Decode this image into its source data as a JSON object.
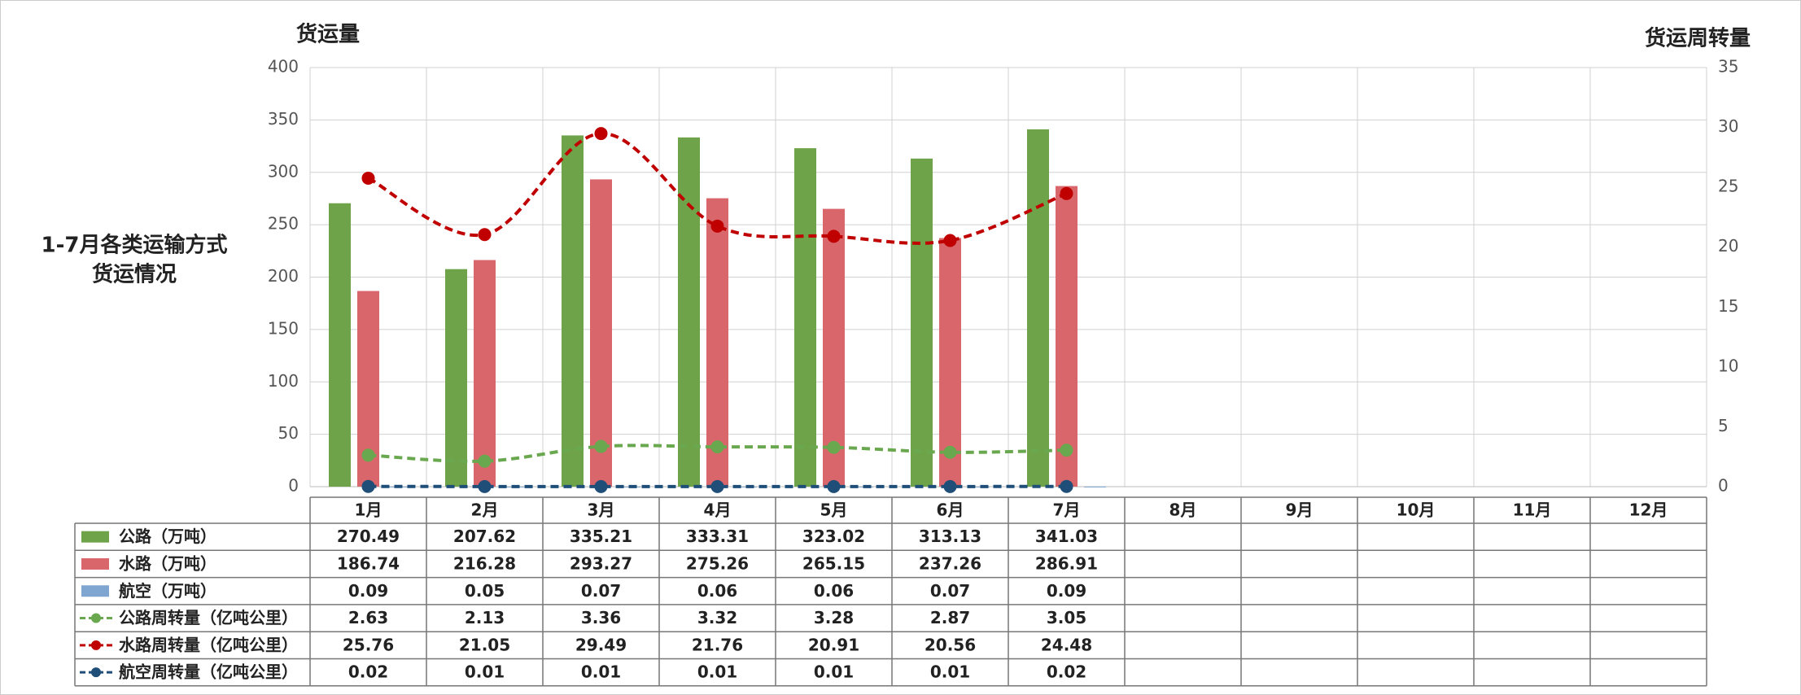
{
  "chart_data": {
    "type": "bar",
    "title": [
      "1-7月各类运输方式",
      "货运情况"
    ],
    "y_label": "货运量",
    "y2_label": "货运周转量",
    "categories": [
      "1月",
      "2月",
      "3月",
      "4月",
      "5月",
      "6月",
      "7月",
      "8月",
      "9月",
      "10月",
      "11月",
      "12月"
    ],
    "ylim": [
      0,
      400
    ],
    "yticks": [
      0,
      50,
      100,
      150,
      200,
      250,
      300,
      350,
      400
    ],
    "y2lim": [
      0,
      35
    ],
    "y2ticks": [
      0,
      5,
      10,
      15,
      20,
      25,
      30,
      35
    ],
    "grid": true,
    "series": [
      {
        "name": "公路（万吨）",
        "type": "bar",
        "color": "#6fa34a",
        "values": [
          270.49,
          207.62,
          335.21,
          333.31,
          323.02,
          313.13,
          341.03,
          null,
          null,
          null,
          null,
          null
        ]
      },
      {
        "name": "水路（万吨）",
        "type": "bar",
        "color": "#d9666a",
        "values": [
          186.74,
          216.28,
          293.27,
          275.26,
          265.15,
          237.26,
          286.91,
          null,
          null,
          null,
          null,
          null
        ]
      },
      {
        "name": "航空（万吨）",
        "type": "bar",
        "color": "#7ea6d0",
        "values": [
          0.09,
          0.05,
          0.07,
          0.06,
          0.06,
          0.07,
          0.09,
          null,
          null,
          null,
          null,
          null
        ]
      },
      {
        "name": "公路周转量（亿吨公里）",
        "type": "line",
        "axis": "y2",
        "color": "#6aa84f",
        "values": [
          2.63,
          2.13,
          3.36,
          3.32,
          3.28,
          2.87,
          3.05,
          null,
          null,
          null,
          null,
          null
        ]
      },
      {
        "name": "水路周转量（亿吨公里）",
        "type": "line",
        "axis": "y2",
        "color": "#c00000",
        "values": [
          25.76,
          21.05,
          29.49,
          21.76,
          20.91,
          20.56,
          24.48,
          null,
          null,
          null,
          null,
          null
        ]
      },
      {
        "name": "航空周转量（亿吨公里）",
        "type": "line",
        "axis": "y2",
        "color": "#1f4e79",
        "values": [
          0.02,
          0.01,
          0.01,
          0.01,
          0.01,
          0.01,
          0.02,
          null,
          null,
          null,
          null,
          null
        ]
      }
    ]
  }
}
